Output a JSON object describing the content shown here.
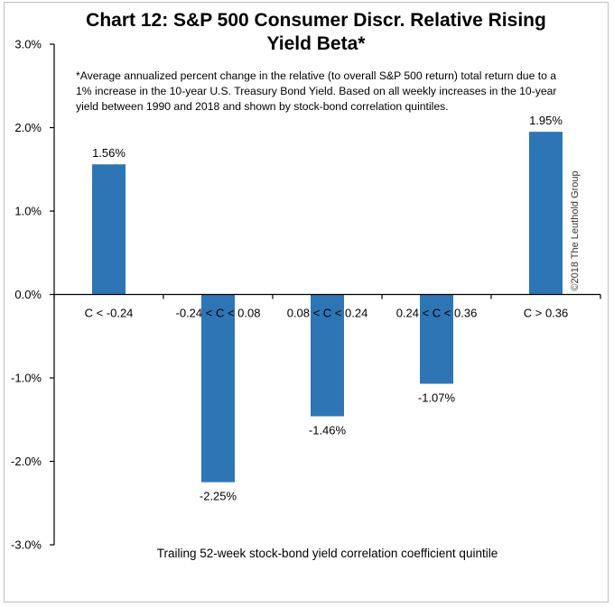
{
  "chart_data": {
    "type": "bar",
    "title": "Chart 12: S&P 500 Consumer Discr. Relative Rising Yield Beta*",
    "note": "*Average annualized percent change in the relative (to overall S&P 500 return) total return due to a 1% increase in the 10-year U.S. Treasury Bond Yield. Based on all weekly increases in the 10-year yield between 1990 and 2018 and shown by stock-bond correlation quintiles.",
    "categories": [
      "C < -0.24",
      "-0.24 < C < 0.08",
      "0.08 < C < 0.24",
      "0.24 < C < 0.36",
      "C > 0.36"
    ],
    "values": [
      1.56,
      -2.25,
      -1.46,
      -1.07,
      1.95
    ],
    "data_labels": [
      "1.56%",
      "-2.25%",
      "-1.46%",
      "-1.07%",
      "1.95%"
    ],
    "xlabel": "Trailing 52-week stock-bond yield correlation coefficient quintile",
    "ylabel": "",
    "ylim": [
      -3.0,
      3.0
    ],
    "yticks": [
      3.0,
      2.0,
      1.0,
      0.0,
      -1.0,
      -2.0,
      -3.0
    ],
    "ytick_labels": [
      "3.0%",
      "2.0%",
      "1.0%",
      "0.0%",
      "-1.0%",
      "-2.0%",
      "-3.0%"
    ],
    "grid": false,
    "bar_color": "#2e75b6",
    "copyright": "©2018 The Leuthold Group"
  }
}
